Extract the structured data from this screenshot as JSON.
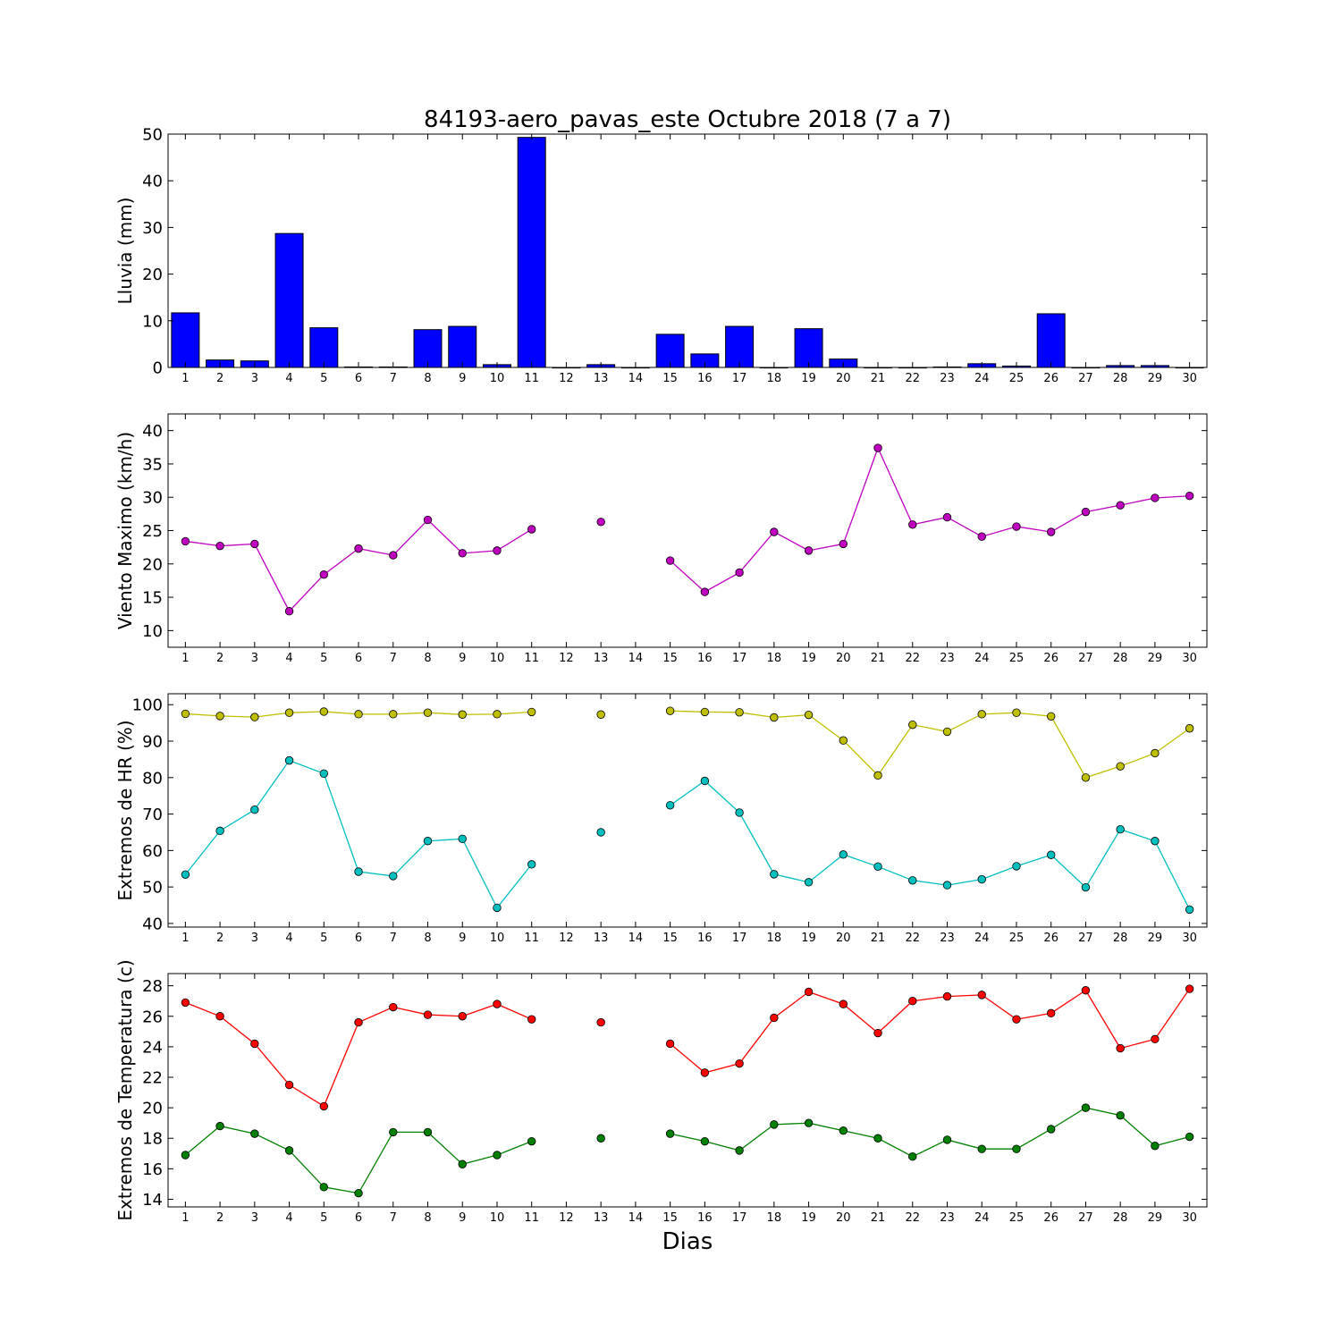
{
  "figure": {
    "title": "84193-aero_pavas_este Octubre 2018  (7 a 7)",
    "xlabel": "Dias"
  },
  "chart_data": [
    {
      "type": "bar",
      "name": "lluvia",
      "ylabel": "Lluvia (mm)",
      "ylim": [
        0,
        50
      ],
      "yticks": [
        0,
        10,
        20,
        30,
        40,
        50
      ],
      "xticks": [
        1,
        2,
        3,
        4,
        5,
        6,
        7,
        8,
        9,
        10,
        11,
        12,
        13,
        14,
        15,
        16,
        17,
        18,
        19,
        20,
        21,
        22,
        23,
        24,
        25,
        26,
        27,
        28,
        29,
        30
      ],
      "color": "#0000ff",
      "x": [
        1,
        2,
        3,
        4,
        5,
        6,
        7,
        8,
        9,
        10,
        11,
        12,
        13,
        14,
        15,
        16,
        17,
        18,
        19,
        20,
        21,
        22,
        23,
        24,
        25,
        26,
        27,
        28,
        29,
        30
      ],
      "values": [
        11.7,
        1.6,
        1.4,
        28.7,
        8.5,
        0.1,
        0.1,
        8.1,
        8.8,
        0.6,
        49.3,
        0,
        0.6,
        0,
        7.1,
        2.9,
        8.8,
        0,
        8.3,
        1.8,
        0,
        0,
        0.1,
        0.8,
        0.3,
        11.5,
        0,
        0.4,
        0.4,
        0
      ]
    },
    {
      "type": "line",
      "name": "viento",
      "ylabel": "Viento Maximo (km/h)",
      "ylim": [
        7.5,
        42.5
      ],
      "yticks": [
        10,
        15,
        20,
        25,
        30,
        35,
        40
      ],
      "xticks": [
        1,
        2,
        3,
        4,
        5,
        6,
        7,
        8,
        9,
        10,
        11,
        12,
        13,
        14,
        15,
        16,
        17,
        18,
        19,
        20,
        21,
        22,
        23,
        24,
        25,
        26,
        27,
        28,
        29,
        30
      ],
      "x": [
        1,
        2,
        3,
        4,
        5,
        6,
        7,
        8,
        9,
        10,
        11,
        12,
        13,
        14,
        15,
        16,
        17,
        18,
        19,
        20,
        21,
        22,
        23,
        24,
        25,
        26,
        27,
        28,
        29,
        30
      ],
      "series": [
        {
          "color": "#bf00bf",
          "values": [
            23.4,
            22.7,
            23.0,
            12.9,
            18.4,
            22.3,
            21.3,
            26.6,
            21.6,
            22.0,
            25.2,
            null,
            26.3,
            null,
            20.5,
            15.8,
            18.7,
            24.8,
            22.0,
            23.0,
            37.4,
            25.9,
            27.0,
            24.1,
            25.6,
            24.8,
            27.8,
            28.8,
            29.9,
            30.2
          ]
        }
      ]
    },
    {
      "type": "line",
      "name": "humedad",
      "ylabel": "Extremos de HR (%)",
      "ylim": [
        39,
        103
      ],
      "yticks": [
        40,
        50,
        60,
        70,
        80,
        90,
        100
      ],
      "xticks": [
        1,
        2,
        3,
        4,
        5,
        6,
        7,
        8,
        9,
        10,
        11,
        12,
        13,
        14,
        15,
        16,
        17,
        18,
        19,
        20,
        21,
        22,
        23,
        24,
        25,
        26,
        27,
        28,
        29,
        30
      ],
      "x": [
        1,
        2,
        3,
        4,
        5,
        6,
        7,
        8,
        9,
        10,
        11,
        12,
        13,
        14,
        15,
        16,
        17,
        18,
        19,
        20,
        21,
        22,
        23,
        24,
        25,
        26,
        27,
        28,
        29,
        30
      ],
      "series": [
        {
          "color": "#bfbf00",
          "values": [
            97.5,
            96.9,
            96.6,
            97.8,
            98.1,
            97.4,
            97.4,
            97.8,
            97.3,
            97.4,
            98.0,
            null,
            97.3,
            null,
            98.3,
            98.0,
            97.9,
            96.5,
            97.2,
            90.2,
            80.6,
            94.5,
            92.6,
            97.4,
            97.8,
            96.8,
            80.0,
            83.1,
            86.7,
            93.5
          ]
        },
        {
          "color": "#00bfbf",
          "values": [
            53.4,
            65.4,
            71.2,
            84.7,
            81.1,
            54.2,
            53.0,
            62.6,
            63.2,
            44.3,
            56.2,
            null,
            65.0,
            null,
            72.4,
            79.1,
            70.4,
            53.5,
            51.3,
            58.9,
            55.6,
            51.8,
            50.5,
            52.1,
            55.7,
            58.8,
            49.9,
            65.8,
            62.6,
            43.8
          ]
        }
      ]
    },
    {
      "type": "line",
      "name": "temperatura",
      "ylabel": "Extremos de Temperatura (c)",
      "ylim": [
        13.5,
        28.8
      ],
      "yticks": [
        14,
        16,
        18,
        20,
        22,
        24,
        26,
        28
      ],
      "xticks": [
        1,
        2,
        3,
        4,
        5,
        6,
        7,
        8,
        9,
        10,
        11,
        12,
        13,
        14,
        15,
        16,
        17,
        18,
        19,
        20,
        21,
        22,
        23,
        24,
        25,
        26,
        27,
        28,
        29,
        30
      ],
      "x": [
        1,
        2,
        3,
        4,
        5,
        6,
        7,
        8,
        9,
        10,
        11,
        12,
        13,
        14,
        15,
        16,
        17,
        18,
        19,
        20,
        21,
        22,
        23,
        24,
        25,
        26,
        27,
        28,
        29,
        30
      ],
      "series": [
        {
          "color": "#ff0000",
          "values": [
            26.9,
            26.0,
            24.2,
            21.5,
            20.1,
            25.6,
            26.6,
            26.1,
            26.0,
            26.8,
            25.8,
            null,
            25.6,
            null,
            24.2,
            22.3,
            22.9,
            25.9,
            27.6,
            26.8,
            24.9,
            27.0,
            27.3,
            27.4,
            25.8,
            26.2,
            27.7,
            23.9,
            24.5,
            27.8
          ]
        },
        {
          "color": "#008000",
          "values": [
            16.9,
            18.8,
            18.3,
            17.2,
            14.8,
            14.4,
            18.4,
            18.4,
            16.3,
            16.9,
            17.8,
            null,
            18.0,
            null,
            18.3,
            17.8,
            17.2,
            18.9,
            19.0,
            18.5,
            18.0,
            16.8,
            17.9,
            17.3,
            17.3,
            18.6,
            20.0,
            19.5,
            17.5,
            18.1
          ]
        }
      ]
    }
  ]
}
